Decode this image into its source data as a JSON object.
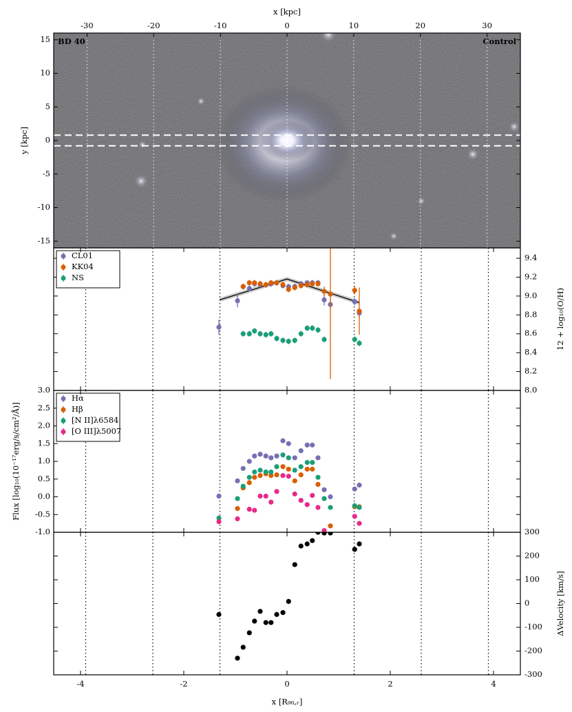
{
  "chart_data": [
    {
      "type": "image",
      "labels": [
        "BD 40",
        "Control"
      ],
      "xlabel": "x [kpc]",
      "xlim": [
        -35,
        35
      ],
      "xticks": [
        -30,
        -20,
        -10,
        0,
        10,
        20,
        30
      ],
      "ylabel": "y [kpc]",
      "ylim": [
        -16,
        16
      ],
      "yticks": [
        -15,
        -10,
        -5,
        0,
        5,
        10,
        15
      ],
      "slit_y": [
        -0.8,
        0.8
      ]
    },
    {
      "type": "scatter",
      "ylabel": "12 + log₁₀(O/H)",
      "ylim": [
        8,
        9.51
      ],
      "yticks": [
        {
          "value": 8,
          "label": "8.0"
        },
        8.2,
        8.4,
        8.6,
        8.8,
        {
          "value": 9,
          "label": "9.0"
        },
        9.2,
        9.4
      ],
      "ytick_side": "right",
      "legend": "upper left",
      "x": [
        -1.32,
        -0.96,
        -0.85,
        -0.73,
        -0.63,
        -0.52,
        -0.41,
        -0.31,
        -0.2,
        -0.08,
        0.03,
        0.15,
        0.27,
        0.39,
        0.49,
        0.6,
        0.72,
        0.84,
        1.31,
        1.4
      ],
      "series": [
        {
          "name": "CL01",
          "color": "#7570b3",
          "values": [
            8.67,
            8.95,
            9.1,
            9.08,
            9.13,
            9.12,
            9.12,
            9.13,
            9.14,
            9.11,
            9.1,
            9.1,
            9.13,
            9.14,
            9.14,
            9.14,
            8.96,
            8.91,
            8.94,
            8.82
          ],
          "errors": [
            0.08,
            0.07,
            0.03,
            0.03,
            0.03,
            0.03,
            0.03,
            0.03,
            0.03,
            0.03,
            0.03,
            0.03,
            0.03,
            0.03,
            0.03,
            0.03,
            0.06,
            0.07,
            0.04,
            0.05
          ]
        },
        {
          "name": "KK04",
          "color": "#d95f02",
          "values": [
            null,
            null,
            9.1,
            9.14,
            9.14,
            9.13,
            9.12,
            9.14,
            9.14,
            9.12,
            9.07,
            9.09,
            9.11,
            9.12,
            9.13,
            9.13,
            9.05,
            9.02,
            9.06,
            8.84
          ],
          "errors": [
            null,
            null,
            0.03,
            0.03,
            0.03,
            0.03,
            0.03,
            0.03,
            0.03,
            0.03,
            0.03,
            0.03,
            0.03,
            0.03,
            0.03,
            0.03,
            0.05,
            0.9,
            0.04,
            0.25
          ]
        },
        {
          "name": "NS",
          "color": "#1b9e77",
          "values": [
            null,
            null,
            8.6,
            8.6,
            8.63,
            8.6,
            8.59,
            8.6,
            8.55,
            8.53,
            8.52,
            8.53,
            8.6,
            8.66,
            8.66,
            8.64,
            8.54,
            null,
            8.54,
            8.5
          ],
          "errors": [
            null,
            null,
            0.03,
            0.03,
            0.03,
            0.03,
            0.03,
            0.03,
            0.03,
            0.03,
            0.03,
            0.03,
            0.03,
            0.03,
            0.03,
            0.03,
            0.03,
            null,
            0.03,
            0.03
          ]
        }
      ],
      "fit": {
        "x": [
          -1.3,
          0,
          1.4
        ],
        "values": [
          8.96,
          9.18,
          8.93
        ]
      }
    },
    {
      "type": "scatter",
      "ylabel": "Flux [log₁₀(10⁻¹⁷erg/s/cm²/Å)]",
      "ylim": [
        -1,
        3
      ],
      "yticks": [
        {
          "value": -1,
          "label": "-1.0"
        },
        -0.5,
        {
          "value": 0,
          "label": "0.0"
        },
        0.5,
        {
          "value": 1,
          "label": "1.0"
        },
        1.5,
        {
          "value": 2,
          "label": "2.0"
        },
        2.5,
        {
          "value": 3,
          "label": "3.0"
        }
      ],
      "ytick_side": "left",
      "legend": "upper left",
      "x": [
        -1.32,
        -0.96,
        -0.85,
        -0.73,
        -0.63,
        -0.52,
        -0.41,
        -0.31,
        -0.2,
        -0.08,
        0.03,
        0.15,
        0.27,
        0.39,
        0.49,
        0.6,
        0.72,
        0.84,
        1.31,
        1.4
      ],
      "series": [
        {
          "name": "Hα",
          "color": "#7570b3",
          "values": [
            0.02,
            0.45,
            0.8,
            1,
            1.15,
            1.2,
            1.15,
            1.1,
            1.15,
            1.58,
            1.5,
            1.1,
            1.3,
            1.46,
            1.46,
            1.1,
            0.2,
            0,
            0.22,
            0.33
          ]
        },
        {
          "name": "Hβ",
          "color": "#d95f02",
          "values": [
            null,
            -0.33,
            0.25,
            0.4,
            0.55,
            0.6,
            0.65,
            0.6,
            0.62,
            0.85,
            0.78,
            0.45,
            0.62,
            0.78,
            0.78,
            0.35,
            null,
            -0.82,
            -0.28,
            -0.28
          ]
        },
        {
          "name": "[N II]λ6584",
          "color": "#1b9e77",
          "values": [
            -0.6,
            -0.05,
            0.3,
            0.55,
            0.7,
            0.75,
            0.7,
            0.7,
            0.85,
            1.18,
            1.1,
            0.75,
            0.85,
            0.97,
            0.97,
            0.55,
            -0.05,
            -0.3,
            -0.25,
            -0.3
          ]
        },
        {
          "name": "[O III]λ5007",
          "color": "#e7298a",
          "values": [
            -0.7,
            -0.62,
            null,
            -0.35,
            -0.38,
            0.02,
            0.02,
            -0.15,
            0.15,
            0.6,
            0.58,
            0.08,
            -0.1,
            -0.22,
            0.04,
            -0.3,
            -0.95,
            null,
            -0.55,
            -0.75
          ]
        }
      ]
    },
    {
      "type": "scatter",
      "ylabel": "ΔVelocity [km/s]",
      "ylim": [
        -300,
        300
      ],
      "yticks": [
        -300,
        -200,
        -100,
        0,
        100,
        200,
        300
      ],
      "ytick_side": "right",
      "xlabel": "x [R₉₀,ᵣ]",
      "xlim": [
        -4.52,
        4.52
      ],
      "xticks": [
        -4,
        -2,
        0,
        2,
        4
      ],
      "vlines": [
        -3.9,
        -2.6,
        -1.3,
        1.3,
        2.6,
        3.9
      ],
      "x": [
        -1.32,
        -0.96,
        -0.85,
        -0.73,
        -0.63,
        -0.52,
        -0.41,
        -0.31,
        -0.2,
        -0.08,
        0.03,
        0.15,
        0.27,
        0.39,
        0.49,
        0.6,
        0.72,
        0.84,
        1.31,
        1.4
      ],
      "series": [
        {
          "color": "#000000",
          "values": [
            -46,
            -230,
            -184,
            -123,
            -74,
            -33,
            -80,
            -80,
            -46,
            -38,
            9,
            164,
            242,
            251,
            265,
            300,
            297,
            297,
            228,
            251
          ]
        }
      ]
    }
  ]
}
